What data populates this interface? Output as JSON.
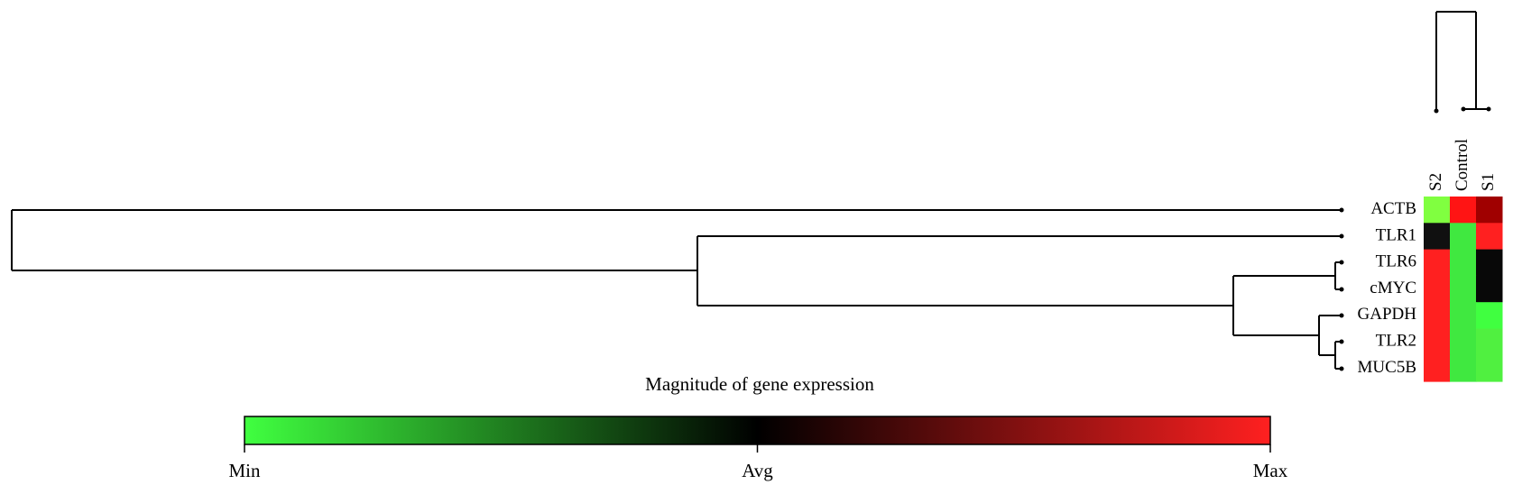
{
  "chart_data": {
    "type": "heatmap",
    "title": "Magnitude of gene expression",
    "rows": [
      "ACTB",
      "TLR1",
      "TLR6",
      "cMYC",
      "GAPDH",
      "TLR2",
      "MUC5B"
    ],
    "columns": [
      "S2",
      "Control",
      "S1"
    ],
    "cell_colors": [
      [
        "#80ff40",
        "#ff1414",
        "#a00000"
      ],
      [
        "#101010",
        "#40e840",
        "#ff2020"
      ],
      [
        "#ff2020",
        "#40e840",
        "#080808"
      ],
      [
        "#ff2020",
        "#40e840",
        "#080808"
      ],
      [
        "#ff2020",
        "#40e840",
        "#40ff40"
      ],
      [
        "#ff2020",
        "#40e840",
        "#50f040"
      ],
      [
        "#ff2020",
        "#40e840",
        "#50f040"
      ]
    ],
    "colorbar": {
      "labels": [
        "Min",
        "Avg",
        "Max"
      ],
      "colors": [
        "#40ff40",
        "#000000",
        "#ff2020"
      ]
    }
  }
}
